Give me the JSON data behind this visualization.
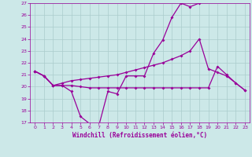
{
  "xlabel": "Windchill (Refroidissement éolien,°C)",
  "x": [
    0,
    1,
    2,
    3,
    4,
    5,
    6,
    7,
    8,
    9,
    10,
    11,
    12,
    13,
    14,
    15,
    16,
    17,
    18,
    19,
    20,
    21,
    22,
    23
  ],
  "line1": [
    21.3,
    20.9,
    20.1,
    20.1,
    19.6,
    17.5,
    16.9,
    16.7,
    19.6,
    19.4,
    20.9,
    20.9,
    20.9,
    22.8,
    23.9,
    25.8,
    27.0,
    26.7,
    27.0,
    null,
    null,
    null,
    null,
    null
  ],
  "line2": [
    21.3,
    20.9,
    20.1,
    20.3,
    20.5,
    20.6,
    20.7,
    20.8,
    20.9,
    21.0,
    21.2,
    21.4,
    21.6,
    21.8,
    22.0,
    22.3,
    22.6,
    23.0,
    24.0,
    21.5,
    21.2,
    20.9,
    20.3,
    19.7
  ],
  "line3": [
    21.3,
    20.9,
    20.1,
    20.1,
    20.1,
    20.0,
    19.9,
    19.9,
    19.9,
    19.9,
    19.9,
    19.9,
    19.9,
    19.9,
    19.9,
    19.9,
    19.9,
    19.9,
    19.9,
    19.9,
    21.7,
    21.0,
    20.3,
    19.7
  ],
  "bg_color": "#cce8e8",
  "line_color": "#990099",
  "grid_color": "#aacccc",
  "ylim": [
    17,
    27
  ],
  "yticks": [
    17,
    18,
    19,
    20,
    21,
    22,
    23,
    24,
    25,
    26,
    27
  ],
  "xlim": [
    -0.5,
    23.5
  ]
}
